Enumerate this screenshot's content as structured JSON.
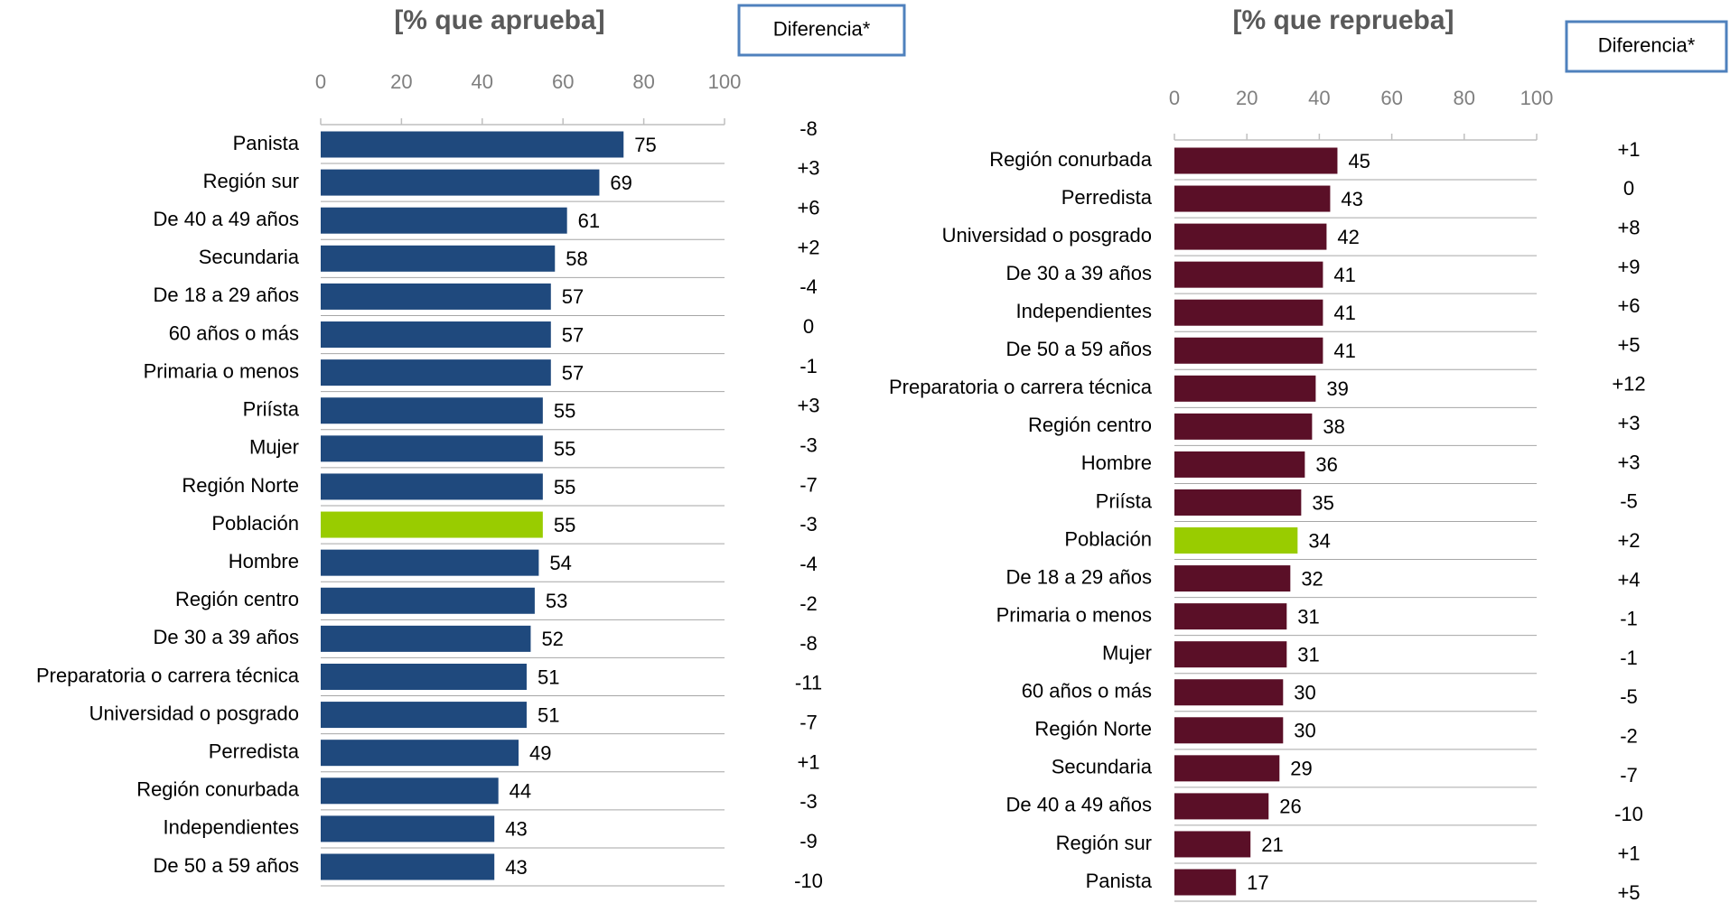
{
  "chart_data": [
    {
      "type": "bar",
      "orientation": "horizontal",
      "title": "[% que aprueba]",
      "categories": [
        "Panista",
        "Región sur",
        "De 40 a 49 años",
        "Secundaria",
        "De 18 a 29 años",
        "60 años o más",
        "Primaria o menos",
        "Priísta",
        "Mujer",
        "Región Norte",
        "Población",
        "Hombre",
        "Región centro",
        "De 30 a 39 años",
        "Preparatoria o carrera técnica",
        "Universidad o posgrado",
        "Perredista",
        "Región conurbada",
        "Independientes",
        "De 50 a 59 años"
      ],
      "values": [
        75,
        69,
        61,
        58,
        57,
        57,
        57,
        55,
        55,
        55,
        55,
        54,
        53,
        52,
        51,
        51,
        49,
        44,
        43,
        43
      ],
      "colors": [
        "#1f497d",
        "#1f497d",
        "#1f497d",
        "#1f497d",
        "#1f497d",
        "#1f497d",
        "#1f497d",
        "#1f497d",
        "#1f497d",
        "#1f497d",
        "#99cc00",
        "#1f497d",
        "#1f497d",
        "#1f497d",
        "#1f497d",
        "#1f497d",
        "#1f497d",
        "#1f497d",
        "#1f497d",
        "#1f497d"
      ],
      "xlim": [
        0,
        100
      ],
      "xticks": [
        0,
        20,
        40,
        60,
        80,
        100
      ],
      "difference_title": "Diferencia*",
      "differences": [
        "-8",
        "+3",
        "+6",
        "+2",
        "-4",
        "0",
        "-1",
        "+3",
        "-3",
        "-7",
        "-3",
        "-4",
        "-2",
        "-8",
        "-11",
        "-7",
        "+1",
        "-3",
        "-9",
        "-10"
      ]
    },
    {
      "type": "bar",
      "orientation": "horizontal",
      "title": "[% que reprueba]",
      "categories": [
        "Región conurbada",
        "Perredista",
        "Universidad o posgrado",
        "De 30 a 39 años",
        "Independientes",
        "De 50 a 59 años",
        "Preparatoria o carrera técnica",
        "Región centro",
        "Hombre",
        "Priísta",
        "Población",
        "De 18 a 29 años",
        "Primaria o menos",
        "Mujer",
        "60 años o más",
        "Región Norte",
        "Secundaria",
        "De 40 a 49 años",
        "Región sur",
        "Panista"
      ],
      "values": [
        45,
        43,
        42,
        41,
        41,
        41,
        39,
        38,
        36,
        35,
        34,
        32,
        31,
        31,
        30,
        30,
        29,
        26,
        21,
        17
      ],
      "colors": [
        "#5a0f27",
        "#5a0f27",
        "#5a0f27",
        "#5a0f27",
        "#5a0f27",
        "#5a0f27",
        "#5a0f27",
        "#5a0f27",
        "#5a0f27",
        "#5a0f27",
        "#99cc00",
        "#5a0f27",
        "#5a0f27",
        "#5a0f27",
        "#5a0f27",
        "#5a0f27",
        "#5a0f27",
        "#5a0f27",
        "#5a0f27",
        "#5a0f27"
      ],
      "xlim": [
        0,
        100
      ],
      "xticks": [
        0,
        20,
        40,
        60,
        80,
        100
      ],
      "difference_title": "Diferencia*",
      "differences": [
        "+1",
        "0",
        "+8",
        "+9",
        "+6",
        "+5",
        "+12",
        "+3",
        "+3",
        "-5",
        "+2",
        "+4",
        "-1",
        "-1",
        "-5",
        "-2",
        "-7",
        "-10",
        "+1",
        "+5"
      ]
    }
  ]
}
